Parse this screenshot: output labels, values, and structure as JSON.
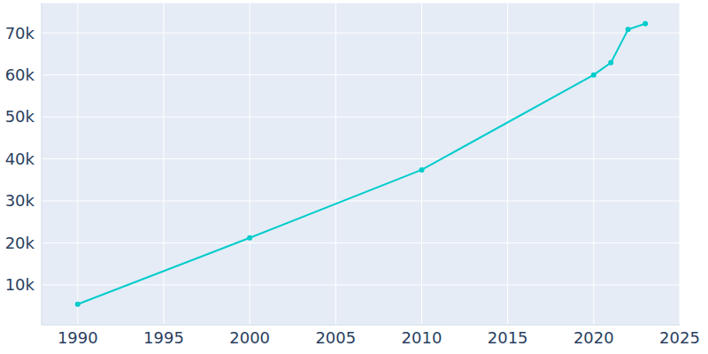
{
  "chart_data": {
    "type": "line",
    "x": [
      1990,
      2000,
      2010,
      2020,
      2021,
      2022,
      2023
    ],
    "values": [
      5400,
      21200,
      37400,
      60000,
      62900,
      70800,
      72200
    ],
    "color": "#00cccc",
    "marker": "circle",
    "xlim": [
      1987.9,
      2025
    ],
    "xticks": [
      1990,
      1995,
      2000,
      2005,
      2010,
      2015,
      2020,
      2025
    ],
    "ylim": [
      500,
      77200
    ],
    "yticks": [
      {
        "value": 10000,
        "label": "10k"
      },
      {
        "value": 20000,
        "label": "20k"
      },
      {
        "value": 30000,
        "label": "30k"
      },
      {
        "value": 40000,
        "label": "40k"
      },
      {
        "value": 50000,
        "label": "50k"
      },
      {
        "value": 60000,
        "label": "60k"
      },
      {
        "value": 70000,
        "label": "70k"
      }
    ],
    "grid": true
  }
}
